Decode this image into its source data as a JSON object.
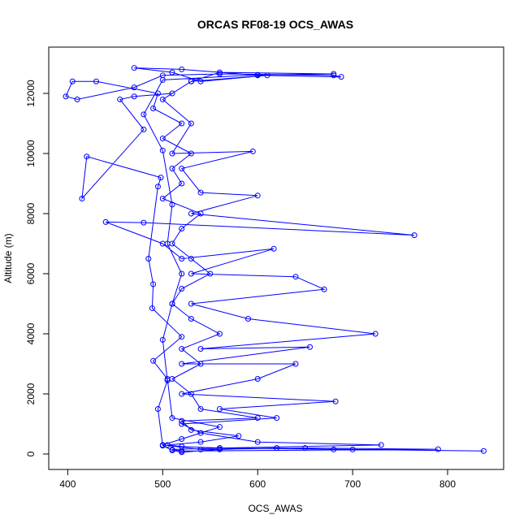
{
  "chart_data": {
    "type": "line",
    "title": "ORCAS RF08-19 OCS_AWAS",
    "xlabel": "OCS_AWAS",
    "ylabel": "Altitude (m)",
    "x": [
      838,
      700,
      560,
      520,
      505,
      540,
      580,
      530,
      520,
      600,
      540,
      530,
      510,
      540,
      520,
      560,
      530,
      510,
      520,
      550,
      530,
      510,
      520,
      540,
      500,
      520,
      510,
      530,
      500,
      520,
      490,
      495,
      430,
      405,
      398,
      410,
      470,
      500,
      560,
      680,
      688,
      600,
      520,
      470,
      510,
      540,
      610,
      530,
      500,
      530,
      510,
      595,
      520,
      540,
      600,
      530,
      765,
      480,
      440,
      500,
      520,
      617,
      530,
      640,
      670,
      530,
      590,
      724,
      540,
      655,
      520,
      640,
      600,
      520,
      682,
      560,
      620,
      520,
      540,
      600,
      730,
      560,
      510,
      520,
      790,
      650,
      540,
      500,
      520,
      560,
      510,
      505,
      490,
      520,
      489,
      490,
      485,
      495,
      498,
      420,
      415,
      480,
      455,
      470,
      510,
      530,
      560,
      680,
      600,
      500,
      480,
      500,
      510,
      505,
      520,
      510,
      500,
      505,
      495,
      500,
      510,
      520,
      560,
      620,
      680
    ],
    "series": [
      {
        "name": "OCS_AWAS",
        "color": "#0000ff",
        "values": [
          100,
          150,
          200,
          250,
          300,
          400,
          600,
          800,
          1100,
          1200,
          1500,
          2000,
          2500,
          3000,
          3500,
          4000,
          4500,
          5000,
          5500,
          6000,
          6500,
          7000,
          7500,
          8000,
          8500,
          9000,
          9500,
          10000,
          10500,
          11000,
          11500,
          12000,
          12400,
          12400,
          11900,
          11800,
          12200,
          12600,
          12650,
          12600,
          12550,
          12600,
          12800,
          12850,
          12700,
          12400,
          12600,
          12400,
          11800,
          11000,
          10000,
          10070,
          9500,
          8700,
          8600,
          8000,
          7280,
          7700,
          7720,
          7000,
          6500,
          6830,
          6000,
          5900,
          5480,
          5000,
          4500,
          4000,
          3500,
          3560,
          3000,
          3000,
          2500,
          2000,
          1750,
          1500,
          1200,
          1000,
          700,
          400,
          300,
          200,
          150,
          100,
          160,
          200,
          150,
          300,
          500,
          900,
          1200,
          2500,
          3100,
          3900,
          4850,
          5650,
          6500,
          8900,
          9200,
          9900,
          8500,
          10800,
          11800,
          11900,
          12000,
          12400,
          12700,
          12650,
          12620,
          12450,
          11300,
          10100,
          8300,
          7000,
          6000,
          5000,
          3800,
          2450,
          1500,
          280,
          120,
          60,
          150,
          200,
          150
        ]
      }
    ],
    "xlim": [
      380,
      859
    ],
    "ylim": [
      -514,
      13541
    ],
    "xticks": [
      400,
      500,
      600,
      700,
      800
    ],
    "yticks": [
      0,
      2000,
      4000,
      6000,
      8000,
      10000,
      12000
    ]
  }
}
